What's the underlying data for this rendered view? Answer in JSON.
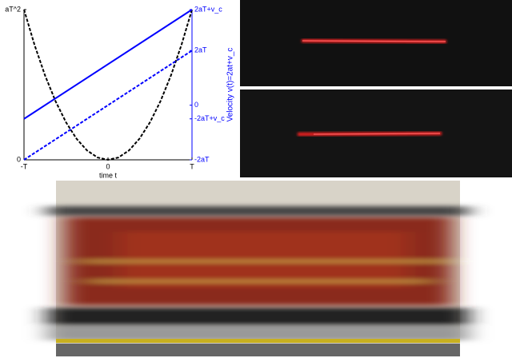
{
  "chart_data": {
    "type": "line",
    "xlabel": "time t",
    "y2label": "Velocity v(t)=2at+v_c",
    "xlim": [
      -1,
      1
    ],
    "xticks": [
      {
        "value": -1,
        "label": "-T"
      },
      0,
      {
        "value": 1,
        "label": "T"
      }
    ],
    "ylim": [
      0,
      1
    ],
    "yticks": [
      0,
      {
        "value": 1,
        "label": "aT^2"
      }
    ],
    "y2lim": [
      -2,
      3.5
    ],
    "y2ticks": [
      {
        "value": -2,
        "label": "-2aT"
      },
      {
        "value": -0.5,
        "label": "-2aT+v_c"
      },
      0,
      {
        "value": 2,
        "label": "2aT"
      },
      {
        "value": 3.5,
        "label": "2aT+v_c"
      }
    ],
    "y2color": "#0000ff",
    "series": [
      {
        "color": "#000000",
        "dash": "dashed",
        "x": [
          -1,
          -0.875,
          -0.75,
          -0.625,
          -0.5,
          -0.375,
          -0.25,
          -0.125,
          0,
          0.125,
          0.25,
          0.375,
          0.5,
          0.625,
          0.75,
          0.875,
          1
        ],
        "values": [
          1,
          0.765625,
          0.5625,
          0.390625,
          0.25,
          0.140625,
          0.0625,
          0.015625,
          0,
          0.015625,
          0.0625,
          0.140625,
          0.25,
          0.390625,
          0.5625,
          0.765625,
          1
        ]
      },
      {
        "color": "#0000ff",
        "dash": "solid",
        "axis": "y2",
        "x": [
          -1,
          1
        ],
        "values": [
          -0.5,
          3.5
        ]
      },
      {
        "color": "#0000ff",
        "dash": "dashed",
        "axis": "y2",
        "x": [
          -1,
          1
        ],
        "values": [
          -2,
          2
        ]
      }
    ]
  }
}
